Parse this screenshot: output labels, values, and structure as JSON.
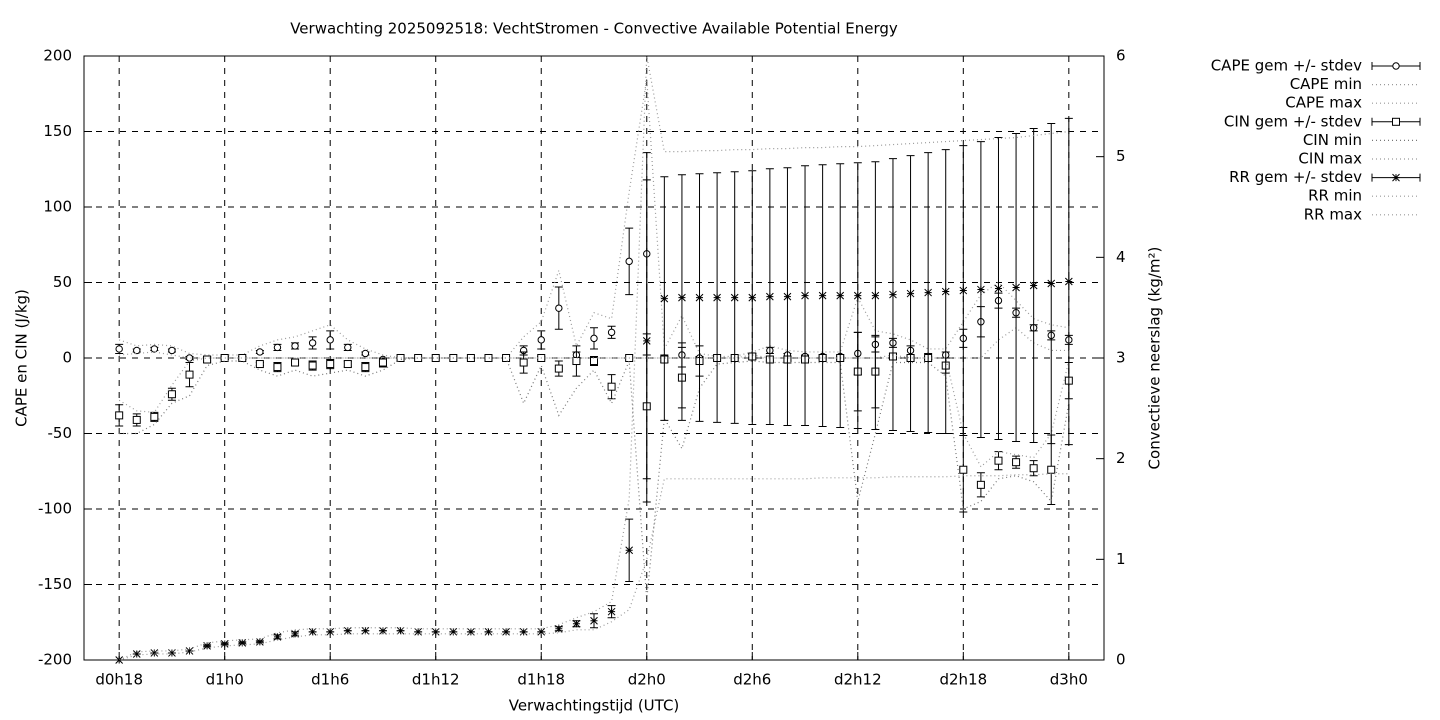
{
  "chart_data": {
    "type": "errorbar",
    "title": "Verwachting 2025092518: VechtStromen - Convective Available Potential Energy",
    "xlabel": "Verwachtingstijd (UTC)",
    "ylabel": "CAPE en CIN (J/kg)",
    "y2label": "Convectieve neerslag (kg/m²)",
    "x": [
      18,
      19,
      20,
      21,
      22,
      23,
      24,
      25,
      26,
      27,
      28,
      29,
      30,
      31,
      32,
      33,
      34,
      35,
      36,
      37,
      38,
      39,
      40,
      41,
      42,
      43,
      44,
      45,
      46,
      47,
      48,
      49,
      50,
      51,
      52,
      53,
      54,
      55,
      56,
      57,
      58,
      59,
      60,
      61,
      62,
      63,
      64,
      65,
      66,
      67,
      68,
      69,
      70,
      71,
      72
    ],
    "xlim": [
      16,
      74
    ],
    "xticks": [
      {
        "value": 18,
        "label": "d0h18"
      },
      {
        "value": 24,
        "label": "d1h0"
      },
      {
        "value": 30,
        "label": "d1h6"
      },
      {
        "value": 36,
        "label": "d1h12"
      },
      {
        "value": 42,
        "label": "d1h18"
      },
      {
        "value": 48,
        "label": "d2h0"
      },
      {
        "value": 54,
        "label": "d2h6"
      },
      {
        "value": 60,
        "label": "d2h12"
      },
      {
        "value": 66,
        "label": "d2h18"
      },
      {
        "value": 72,
        "label": "d3h0"
      }
    ],
    "ylim": [
      -200,
      200
    ],
    "yticks": [
      -200,
      -150,
      -100,
      -50,
      0,
      50,
      100,
      150,
      200
    ],
    "y2lim": [
      0,
      6
    ],
    "y2ticks": [
      0,
      1,
      2,
      3,
      4,
      5,
      6
    ],
    "grid": true,
    "legend": "outside-top-right",
    "series": [
      {
        "name": "CAPE gem +/- stdev",
        "color": "#000000",
        "marker": "circle",
        "axis": "y",
        "values": [
          6,
          5,
          6,
          5,
          0,
          -1,
          0,
          0,
          4,
          7,
          8,
          10,
          12,
          7,
          3,
          -1,
          0,
          0,
          0,
          0,
          0,
          0,
          0,
          5,
          12,
          33,
          2,
          13,
          17,
          64,
          69,
          0,
          2,
          0,
          0,
          0,
          1,
          5,
          2,
          1,
          1,
          1,
          3,
          9,
          10,
          5,
          1,
          2,
          13,
          24,
          38,
          30,
          20,
          15,
          12
        ],
        "error": [
          3,
          1,
          1,
          1,
          1,
          1,
          1,
          1,
          1,
          2,
          2,
          4,
          6,
          2,
          1,
          1,
          0,
          0,
          0,
          0,
          0,
          0,
          0,
          3,
          6,
          14,
          2,
          7,
          4,
          22,
          67,
          2,
          8,
          1,
          0,
          0,
          1,
          2,
          1,
          1,
          1,
          1,
          14,
          5,
          3,
          3,
          2,
          2,
          6,
          10,
          5,
          3,
          2,
          3,
          3
        ]
      },
      {
        "name": "CAPE min",
        "color": "#999999",
        "marker": "dotted",
        "axis": "y",
        "values": [
          2,
          3,
          4,
          2,
          0,
          0,
          0,
          0,
          0,
          0,
          0,
          0,
          0,
          0,
          0,
          0,
          0,
          0,
          0,
          0,
          0,
          0,
          0,
          0,
          0,
          0,
          0,
          0,
          0,
          0,
          0,
          0,
          0,
          0,
          0,
          0,
          0,
          0,
          0,
          0,
          0,
          0,
          0,
          0,
          0,
          0,
          0,
          0,
          0,
          0,
          12,
          20,
          10,
          5,
          5
        ]
      },
      {
        "name": "CAPE max",
        "color": "#999999",
        "marker": "dotted",
        "axis": "y",
        "values": [
          12,
          8,
          9,
          8,
          3,
          2,
          2,
          2,
          8,
          12,
          14,
          18,
          22,
          12,
          6,
          2,
          0,
          0,
          0,
          0,
          0,
          0,
          0,
          14,
          24,
          58,
          8,
          30,
          26,
          110,
          185,
          6,
          28,
          3,
          1,
          1,
          4,
          8,
          5,
          4,
          4,
          4,
          40,
          18,
          16,
          12,
          6,
          6,
          24,
          42,
          50,
          38,
          26,
          22,
          20
        ]
      },
      {
        "name": "CIN gem +/- stdev",
        "color": "#000000",
        "marker": "square",
        "axis": "y",
        "values": [
          -38,
          -41,
          -39,
          -24,
          -11,
          -1,
          0,
          0,
          -4,
          -6,
          -3,
          -5,
          -4,
          -4,
          -6,
          -3,
          0,
          0,
          0,
          0,
          0,
          0,
          0,
          -3,
          0,
          -7,
          -2,
          -2,
          -19,
          0,
          -32,
          -1,
          -13,
          -2,
          0,
          0,
          1,
          -1,
          -1,
          -1,
          0,
          0,
          -9,
          -9,
          1,
          0,
          0,
          -5,
          -74,
          -84,
          -68,
          -69,
          -73,
          -74,
          -15
        ],
        "error": [
          7,
          4,
          3,
          4,
          8,
          2,
          1,
          1,
          1,
          3,
          2,
          3,
          3,
          2,
          3,
          3,
          0,
          0,
          0,
          0,
          0,
          0,
          0,
          7,
          1,
          5,
          10,
          3,
          8,
          0,
          48,
          2,
          20,
          10,
          0,
          0,
          2,
          1,
          1,
          1,
          1,
          1,
          26,
          24,
          2,
          1,
          1,
          5,
          28,
          8,
          6,
          4,
          5,
          23,
          12
        ]
      },
      {
        "name": "CIN min",
        "color": "#777777",
        "marker": "dotted",
        "axis": "y",
        "values": [
          -50,
          -50,
          -44,
          -30,
          -25,
          -5,
          -2,
          -2,
          -8,
          -12,
          -8,
          -12,
          -10,
          -8,
          -12,
          -8,
          -1,
          0,
          0,
          0,
          0,
          0,
          0,
          -30,
          -5,
          -38,
          -20,
          -8,
          -30,
          -2,
          -160,
          -40,
          -60,
          -20,
          -4,
          -3,
          -2,
          -3,
          -3,
          -3,
          -3,
          -3,
          -95,
          -50,
          -3,
          -3,
          -3,
          -12,
          -100,
          -95,
          -80,
          -78,
          -82,
          -95,
          -30
        ]
      },
      {
        "name": "CIN max",
        "color": "#999999",
        "marker": "dotted",
        "axis": "y",
        "values": [
          -28,
          -35,
          -36,
          -18,
          -2,
          0,
          0,
          0,
          0,
          0,
          0,
          0,
          0,
          0,
          0,
          0,
          0,
          0,
          0,
          0,
          0,
          0,
          0,
          0,
          0,
          0,
          0,
          0,
          0,
          0,
          0,
          0,
          0,
          0,
          0,
          0,
          2,
          0,
          0,
          0,
          0,
          0,
          0,
          0,
          2,
          0,
          0,
          0,
          -50,
          -72,
          -62,
          -64,
          -66,
          -50,
          -2
        ]
      },
      {
        "name": "RR gem +/- stdev",
        "color": "#000000",
        "marker": "asterisk",
        "axis": "y2",
        "values": [
          0,
          0.06,
          0.07,
          0.07,
          0.09,
          0.14,
          0.16,
          0.17,
          0.18,
          0.23,
          0.26,
          0.28,
          0.28,
          0.29,
          0.29,
          0.29,
          0.29,
          0.28,
          0.28,
          0.28,
          0.28,
          0.28,
          0.28,
          0.28,
          0.28,
          0.31,
          0.36,
          0.39,
          0.48,
          1.09,
          3.17,
          3.59,
          3.6,
          3.6,
          3.6,
          3.6,
          3.6,
          3.61,
          3.61,
          3.62,
          3.62,
          3.62,
          3.62,
          3.62,
          3.63,
          3.64,
          3.65,
          3.66,
          3.67,
          3.68,
          3.69,
          3.7,
          3.72,
          3.74,
          3.76
        ],
        "error": [
          0,
          0,
          0,
          0,
          0,
          0.01,
          0.01,
          0.01,
          0.01,
          0.02,
          0.02,
          0,
          0,
          0,
          0,
          0,
          0,
          0,
          0,
          0,
          0,
          0,
          0,
          0,
          0,
          0.02,
          0.03,
          0.07,
          0.06,
          0.31,
          1.6,
          1.21,
          1.22,
          1.23,
          1.24,
          1.25,
          1.26,
          1.27,
          1.28,
          1.29,
          1.3,
          1.31,
          1.32,
          1.33,
          1.35,
          1.37,
          1.39,
          1.41,
          1.44,
          1.47,
          1.5,
          1.53,
          1.56,
          1.59,
          1.62
        ]
      },
      {
        "name": "RR min",
        "color": "#999999",
        "marker": "dotted",
        "axis": "y2",
        "values": [
          0,
          0.05,
          0.06,
          0.06,
          0.08,
          0.12,
          0.14,
          0.15,
          0.16,
          0.2,
          0.23,
          0.25,
          0.25,
          0.26,
          0.26,
          0.26,
          0.26,
          0.26,
          0.26,
          0.26,
          0.26,
          0.26,
          0.26,
          0.26,
          0.26,
          0.27,
          0.3,
          0.3,
          0.38,
          0.5,
          1.0,
          1.8,
          1.8,
          1.8,
          1.8,
          1.8,
          1.8,
          1.8,
          1.8,
          1.8,
          1.81,
          1.81,
          1.81,
          1.81,
          1.82,
          1.82,
          1.82,
          1.82,
          1.83,
          1.83,
          1.83,
          1.84,
          1.84,
          1.85,
          1.85
        ]
      },
      {
        "name": "RR max",
        "color": "#999999",
        "marker": "dotted",
        "axis": "y2",
        "values": [
          0,
          0.08,
          0.09,
          0.09,
          0.11,
          0.17,
          0.19,
          0.2,
          0.21,
          0.27,
          0.3,
          0.31,
          0.31,
          0.32,
          0.32,
          0.32,
          0.32,
          0.31,
          0.31,
          0.31,
          0.31,
          0.31,
          0.31,
          0.31,
          0.31,
          0.35,
          0.42,
          0.48,
          0.58,
          1.6,
          6.0,
          5.05,
          5.05,
          5.06,
          5.06,
          5.07,
          5.07,
          5.08,
          5.08,
          5.09,
          5.09,
          5.1,
          5.1,
          5.11,
          5.12,
          5.13,
          5.14,
          5.15,
          5.16,
          5.17,
          5.18,
          5.19,
          5.21,
          5.23,
          5.25
        ]
      }
    ]
  }
}
